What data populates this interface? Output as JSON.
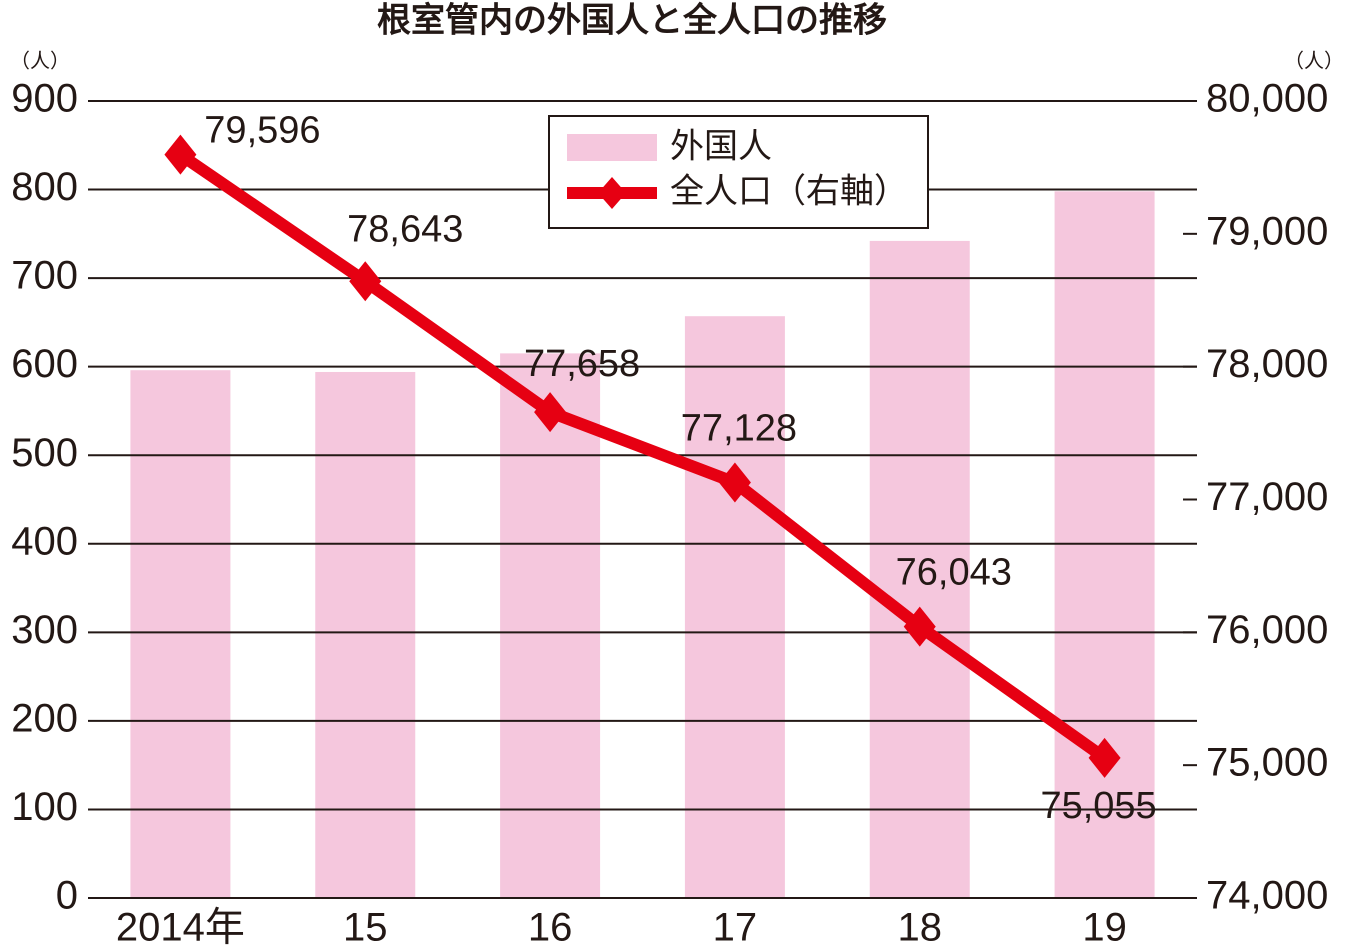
{
  "chart_data": {
    "type": "bar-line",
    "title": "根室管内の外国人と全人口の推移",
    "ylabel": "（人）",
    "y2label": "（人）",
    "categories": [
      "2014年",
      "15",
      "16",
      "17",
      "18",
      "19"
    ],
    "series": [
      {
        "name": "外国人",
        "type": "bar",
        "color": "#f5c7dd",
        "values": [
          596,
          594,
          615,
          657,
          742,
          798
        ]
      },
      {
        "name": "全人口（右軸）",
        "type": "line",
        "axis": "y2",
        "color": "#e60012",
        "values": [
          79596,
          78643,
          77658,
          77128,
          76043,
          75055
        ],
        "value_labels": [
          "79,596",
          "78,643",
          "77,658",
          "77,128",
          "76,043",
          "75,055"
        ]
      }
    ],
    "ylim": [
      0,
      900
    ],
    "yticks": [
      0,
      100,
      200,
      300,
      400,
      500,
      600,
      700,
      800,
      900
    ],
    "y2lim": [
      74000,
      80000
    ],
    "y2ticks": [
      {
        "value": 74000,
        "label": "74,000"
      },
      {
        "value": 75000,
        "label": "75,000"
      },
      {
        "value": 76000,
        "label": "76,000"
      },
      {
        "value": 77000,
        "label": "77,000"
      },
      {
        "value": 78000,
        "label": "78,000"
      },
      {
        "value": 79000,
        "label": "79,000"
      },
      {
        "value": 80000,
        "label": "80,000"
      }
    ],
    "grid": true
  }
}
